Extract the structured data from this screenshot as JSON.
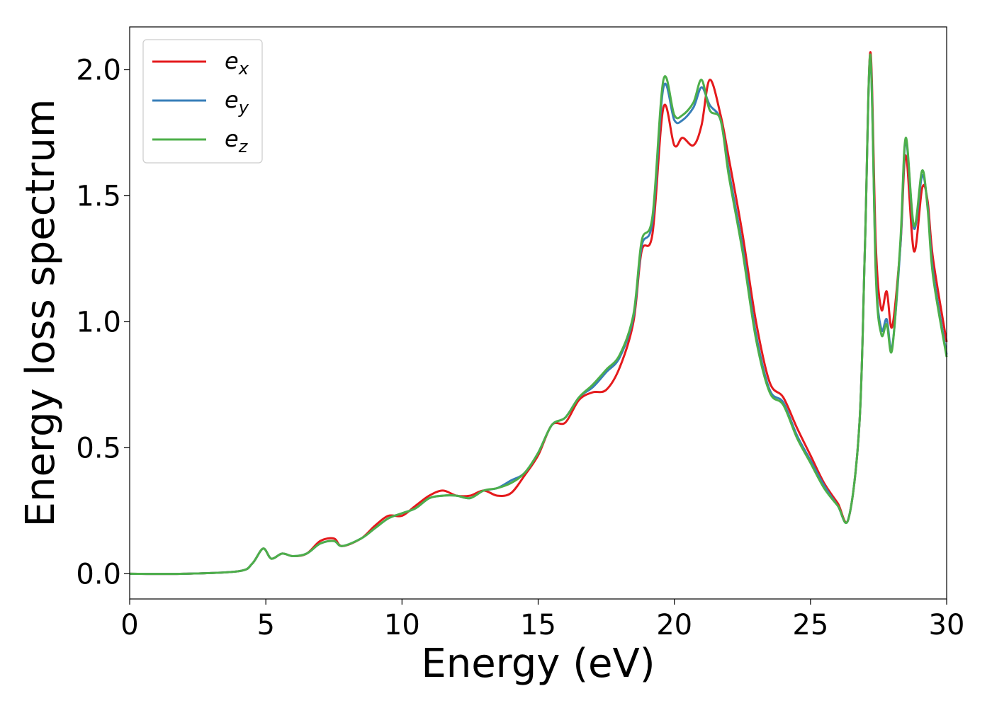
{
  "chart_data": {
    "type": "line",
    "xlabel": "Energy (eV)",
    "ylabel": "Energy loss spectrum",
    "xlim": [
      0,
      30
    ],
    "ylim": [
      -0.1,
      2.17
    ],
    "xticks": [
      "0",
      "5",
      "10",
      "15",
      "20",
      "25",
      "30"
    ],
    "yticks": [
      "0.0",
      "0.5",
      "1.0",
      "1.5",
      "2.0"
    ],
    "grid": false,
    "legend_position": "top-left",
    "series": [
      {
        "name": "e_x",
        "label_base": "e",
        "label_sub": "x",
        "color": "#e41a1c",
        "x": [
          0,
          2,
          4,
          4.5,
          4.9,
          5.2,
          5.6,
          6.0,
          6.5,
          7.0,
          7.5,
          7.8,
          8.5,
          9.0,
          9.5,
          10.0,
          10.5,
          11.0,
          11.5,
          12.0,
          12.5,
          13.0,
          13.5,
          14.0,
          14.5,
          15.0,
          15.5,
          16.0,
          16.5,
          17.0,
          17.5,
          18.0,
          18.5,
          18.8,
          19.2,
          19.6,
          20.0,
          20.3,
          20.7,
          21.0,
          21.3,
          21.7,
          22.0,
          22.5,
          23.0,
          23.5,
          24.0,
          24.5,
          25.0,
          25.5,
          26.0,
          26.4,
          26.8,
          27.0,
          27.2,
          27.4,
          27.6,
          27.8,
          28.0,
          28.3,
          28.5,
          28.8,
          29.1,
          29.3,
          29.5,
          30.0
        ],
        "y": [
          0.0,
          0.0,
          0.01,
          0.04,
          0.1,
          0.06,
          0.08,
          0.07,
          0.08,
          0.13,
          0.14,
          0.11,
          0.14,
          0.19,
          0.23,
          0.23,
          0.27,
          0.31,
          0.33,
          0.31,
          0.31,
          0.33,
          0.31,
          0.32,
          0.39,
          0.47,
          0.59,
          0.6,
          0.69,
          0.72,
          0.73,
          0.82,
          1.0,
          1.28,
          1.35,
          1.85,
          1.7,
          1.73,
          1.7,
          1.78,
          1.96,
          1.82,
          1.65,
          1.35,
          1.0,
          0.76,
          0.7,
          0.58,
          0.47,
          0.36,
          0.28,
          0.22,
          0.6,
          1.3,
          2.07,
          1.3,
          1.05,
          1.12,
          0.98,
          1.3,
          1.66,
          1.28,
          1.53,
          1.48,
          1.25,
          0.92
        ]
      },
      {
        "name": "e_y",
        "label_base": "e",
        "label_sub": "y",
        "color": "#377eb8",
        "x": [
          0,
          2,
          4,
          4.5,
          4.9,
          5.2,
          5.6,
          6.0,
          6.5,
          7.0,
          7.5,
          7.8,
          8.5,
          9.0,
          9.5,
          10.0,
          10.5,
          11.0,
          11.5,
          12.0,
          12.5,
          13.0,
          13.5,
          14.0,
          14.5,
          15.0,
          15.5,
          16.0,
          16.5,
          17.0,
          17.5,
          18.0,
          18.5,
          18.8,
          19.2,
          19.6,
          20.0,
          20.3,
          20.7,
          21.0,
          21.3,
          21.7,
          22.0,
          22.5,
          23.0,
          23.5,
          24.0,
          24.5,
          25.0,
          25.5,
          26.0,
          26.4,
          26.8,
          27.0,
          27.2,
          27.4,
          27.6,
          27.8,
          28.0,
          28.3,
          28.5,
          28.8,
          29.1,
          29.3,
          29.5,
          30.0
        ],
        "y": [
          0.0,
          0.0,
          0.01,
          0.04,
          0.1,
          0.06,
          0.08,
          0.07,
          0.08,
          0.12,
          0.13,
          0.11,
          0.14,
          0.18,
          0.22,
          0.24,
          0.26,
          0.3,
          0.31,
          0.31,
          0.3,
          0.33,
          0.34,
          0.37,
          0.4,
          0.48,
          0.59,
          0.62,
          0.7,
          0.74,
          0.8,
          0.86,
          1.02,
          1.3,
          1.4,
          1.93,
          1.8,
          1.8,
          1.85,
          1.93,
          1.86,
          1.8,
          1.6,
          1.3,
          0.95,
          0.73,
          0.68,
          0.55,
          0.45,
          0.35,
          0.27,
          0.22,
          0.6,
          1.3,
          2.05,
          1.2,
          0.97,
          1.01,
          0.9,
          1.3,
          1.72,
          1.37,
          1.58,
          1.46,
          1.2,
          0.87
        ]
      },
      {
        "name": "e_z",
        "label_base": "e",
        "label_sub": "z",
        "color": "#4daf4a",
        "x": [
          0,
          2,
          4,
          4.5,
          4.9,
          5.2,
          5.6,
          6.0,
          6.5,
          7.0,
          7.5,
          7.8,
          8.5,
          9.0,
          9.5,
          10.0,
          10.5,
          11.0,
          11.5,
          12.0,
          12.5,
          13.0,
          13.5,
          14.0,
          14.5,
          15.0,
          15.5,
          16.0,
          16.5,
          17.0,
          17.5,
          18.0,
          18.5,
          18.8,
          19.2,
          19.6,
          20.0,
          20.3,
          20.7,
          21.0,
          21.3,
          21.7,
          22.0,
          22.5,
          23.0,
          23.5,
          24.0,
          24.5,
          25.0,
          25.5,
          26.0,
          26.4,
          26.8,
          27.0,
          27.2,
          27.4,
          27.6,
          27.8,
          28.0,
          28.3,
          28.5,
          28.8,
          29.1,
          29.3,
          29.5,
          30.0
        ],
        "y": [
          0.0,
          0.0,
          0.01,
          0.04,
          0.1,
          0.06,
          0.08,
          0.07,
          0.08,
          0.12,
          0.13,
          0.11,
          0.14,
          0.18,
          0.22,
          0.24,
          0.26,
          0.3,
          0.31,
          0.31,
          0.3,
          0.33,
          0.34,
          0.36,
          0.4,
          0.48,
          0.59,
          0.62,
          0.7,
          0.75,
          0.81,
          0.87,
          1.03,
          1.32,
          1.42,
          1.96,
          1.82,
          1.82,
          1.87,
          1.96,
          1.84,
          1.8,
          1.58,
          1.28,
          0.93,
          0.72,
          0.67,
          0.54,
          0.44,
          0.34,
          0.27,
          0.22,
          0.6,
          1.3,
          2.06,
          1.18,
          0.95,
          0.99,
          0.89,
          1.32,
          1.73,
          1.38,
          1.6,
          1.45,
          1.18,
          0.86
        ]
      }
    ]
  }
}
